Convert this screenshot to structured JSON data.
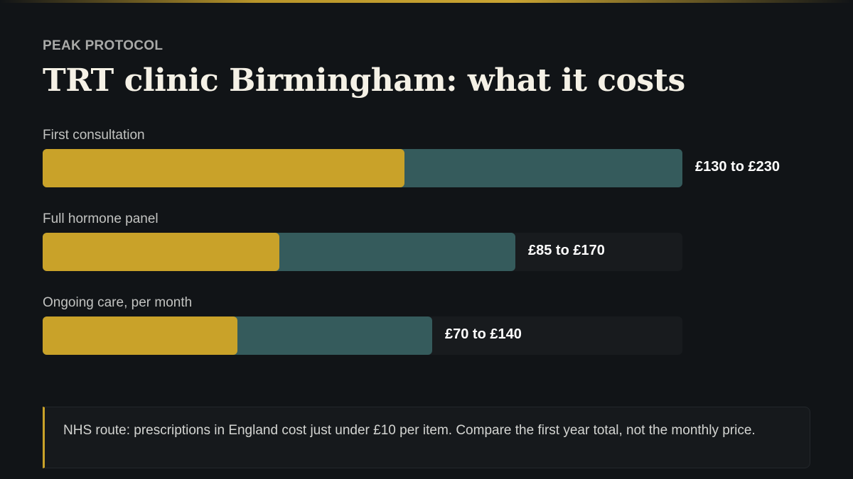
{
  "header": {
    "kicker": "PEAK PROTOCOL",
    "title": "TRT clinic Birmingham: what it costs"
  },
  "colors": {
    "accent": "#c9a229",
    "range_bar": "#355b5c",
    "background": "#111417"
  },
  "chart_data": {
    "type": "bar",
    "orientation": "horizontal",
    "title": "TRT clinic Birmingham: what it costs",
    "unit": "£",
    "xlim": [
      0,
      230
    ],
    "grid": false,
    "categories": [
      "First consultation",
      "Full hormone panel",
      "Ongoing care, per month"
    ],
    "series": [
      {
        "values": [
          130,
          85,
          70
        ]
      },
      {
        "values": [
          230,
          170,
          140
        ]
      }
    ],
    "data_labels": [
      "£130 to £230",
      "£85 to £170",
      "£70 to £140"
    ]
  },
  "note": {
    "text": "NHS route: prescriptions in England cost just under £10 per item. Compare the first year total, not the monthly price."
  }
}
